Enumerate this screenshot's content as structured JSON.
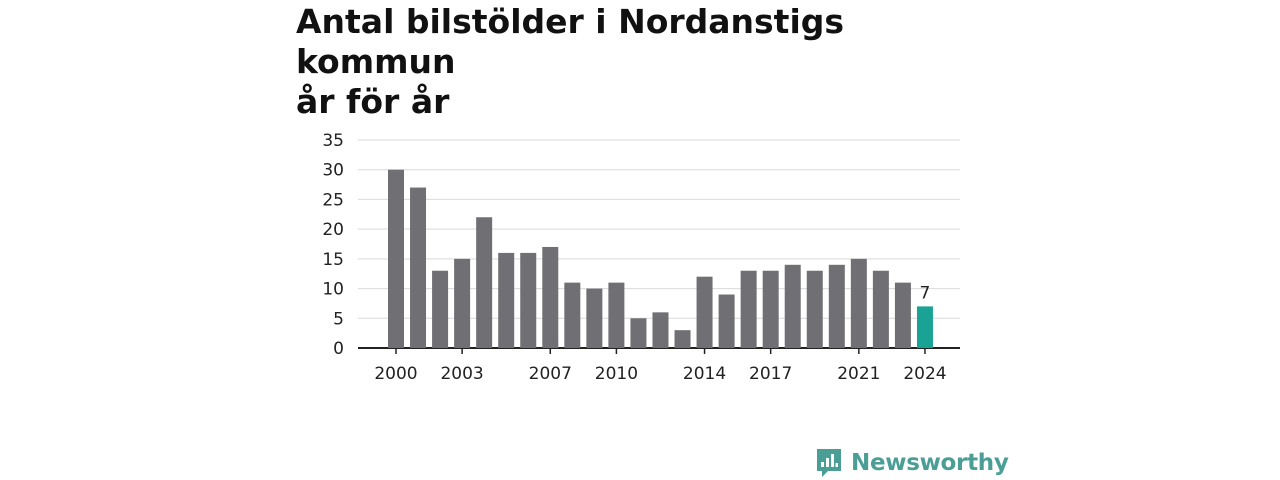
{
  "title_line1": "Antal bilstölder i Nordanstigs kommun",
  "title_line2": "år för år",
  "brand": {
    "name": "Newsworthy",
    "icon": "newsworthy-logo-icon"
  },
  "colors": {
    "bar": "#707074",
    "highlight": "#1aa395",
    "grid": "#d9d9d9",
    "axis": "#222222"
  },
  "chart_data": {
    "type": "bar",
    "categories": [
      "2000",
      "2001",
      "2002",
      "2003",
      "2004",
      "2005",
      "2006",
      "2007",
      "2008",
      "2009",
      "2010",
      "2011",
      "2012",
      "2013",
      "2014",
      "2015",
      "2016",
      "2017",
      "2018",
      "2019",
      "2020",
      "2021",
      "2022",
      "2023",
      "2024"
    ],
    "values": [
      30,
      27,
      13,
      15,
      22,
      16,
      16,
      17,
      11,
      10,
      11,
      5,
      6,
      3,
      12,
      9,
      13,
      13,
      14,
      13,
      14,
      15,
      13,
      11,
      7
    ],
    "highlight_index": 24,
    "highlight_label": "7",
    "x_tick_labels": [
      "2000",
      "2003",
      "2007",
      "2010",
      "2014",
      "2017",
      "2021",
      "2024"
    ],
    "y_ticks": [
      0,
      5,
      10,
      15,
      20,
      25,
      30,
      35
    ],
    "ylim": [
      0,
      35
    ],
    "grid": true,
    "xlabel": "",
    "ylabel": ""
  }
}
